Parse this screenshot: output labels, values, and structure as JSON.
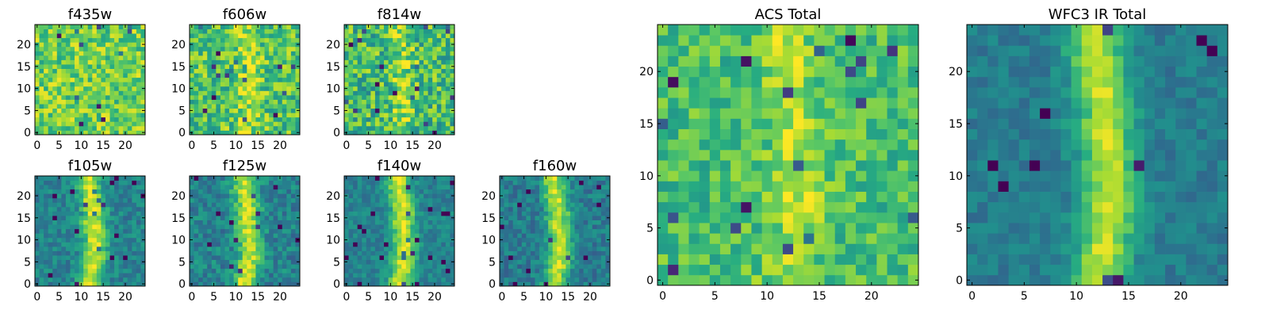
{
  "chart_data": [
    {
      "type": "heatmap",
      "title": "f435w",
      "grid_size": 25,
      "colormap": "viridis",
      "xticks": [
        0,
        5,
        10,
        15,
        20
      ],
      "yticks": [
        0,
        5,
        10,
        15,
        20
      ],
      "xlim": [
        0,
        25
      ],
      "ylim": [
        0,
        25
      ],
      "pattern": "noise",
      "base_level": 0.78,
      "noise_level": 0.2,
      "seed": 11
    },
    {
      "type": "heatmap",
      "title": "f606w",
      "grid_size": 25,
      "colormap": "viridis",
      "xticks": [
        0,
        5,
        10,
        15,
        20
      ],
      "yticks": [
        0,
        5,
        10,
        15,
        20
      ],
      "xlim": [
        0,
        25
      ],
      "ylim": [
        0,
        25
      ],
      "pattern": "faint-ridge",
      "base_level": 0.72,
      "noise_level": 0.22,
      "seed": 23
    },
    {
      "type": "heatmap",
      "title": "f814w",
      "grid_size": 25,
      "colormap": "viridis",
      "xticks": [
        0,
        5,
        10,
        15,
        20
      ],
      "yticks": [
        0,
        5,
        10,
        15,
        20
      ],
      "xlim": [
        0,
        25
      ],
      "ylim": [
        0,
        25
      ],
      "pattern": "faint-ridge",
      "base_level": 0.68,
      "noise_level": 0.24,
      "seed": 37
    },
    {
      "type": "heatmap",
      "title": "f105w",
      "grid_size": 25,
      "colormap": "viridis",
      "xticks": [
        0,
        5,
        10,
        15,
        20
      ],
      "yticks": [
        0,
        5,
        10,
        15,
        20
      ],
      "xlim": [
        0,
        25
      ],
      "ylim": [
        0,
        25
      ],
      "pattern": "ridge",
      "base_level": 0.45,
      "noise_level": 0.12,
      "seed": 41
    },
    {
      "type": "heatmap",
      "title": "f125w",
      "grid_size": 25,
      "colormap": "viridis",
      "xticks": [
        0,
        5,
        10,
        15,
        20
      ],
      "yticks": [
        0,
        5,
        10,
        15,
        20
      ],
      "xlim": [
        0,
        25
      ],
      "ylim": [
        0,
        25
      ],
      "pattern": "ridge",
      "base_level": 0.45,
      "noise_level": 0.14,
      "seed": 53
    },
    {
      "type": "heatmap",
      "title": "f140w",
      "grid_size": 25,
      "colormap": "viridis",
      "xticks": [
        0,
        5,
        10,
        15,
        20
      ],
      "yticks": [
        0,
        5,
        10,
        15,
        20
      ],
      "xlim": [
        0,
        25
      ],
      "ylim": [
        0,
        25
      ],
      "pattern": "ridge",
      "base_level": 0.45,
      "noise_level": 0.1,
      "seed": 67
    },
    {
      "type": "heatmap",
      "title": "f160w",
      "grid_size": 25,
      "colormap": "viridis",
      "xticks": [
        0,
        5,
        10,
        15,
        20
      ],
      "yticks": [
        0,
        5,
        10,
        15,
        20
      ],
      "xlim": [
        0,
        25
      ],
      "ylim": [
        0,
        25
      ],
      "pattern": "ridge",
      "base_level": 0.42,
      "noise_level": 0.12,
      "seed": 79
    },
    {
      "type": "heatmap",
      "title": "ACS Total",
      "grid_size": 25,
      "colormap": "viridis",
      "xticks": [
        0,
        5,
        10,
        15,
        20
      ],
      "yticks": [
        0,
        5,
        10,
        15,
        20
      ],
      "xlim": [
        0,
        25
      ],
      "ylim": [
        0,
        25
      ],
      "pattern": "faint-ridge",
      "base_level": 0.7,
      "noise_level": 0.16,
      "seed": 89
    },
    {
      "type": "heatmap",
      "title": "WFC3 IR Total",
      "grid_size": 25,
      "colormap": "viridis",
      "xticks": [
        0,
        5,
        10,
        15,
        20
      ],
      "yticks": [
        0,
        5,
        10,
        15,
        20
      ],
      "xlim": [
        0,
        25
      ],
      "ylim": [
        0,
        25
      ],
      "pattern": "ridge",
      "base_level": 0.42,
      "noise_level": 0.08,
      "seed": 97
    }
  ]
}
